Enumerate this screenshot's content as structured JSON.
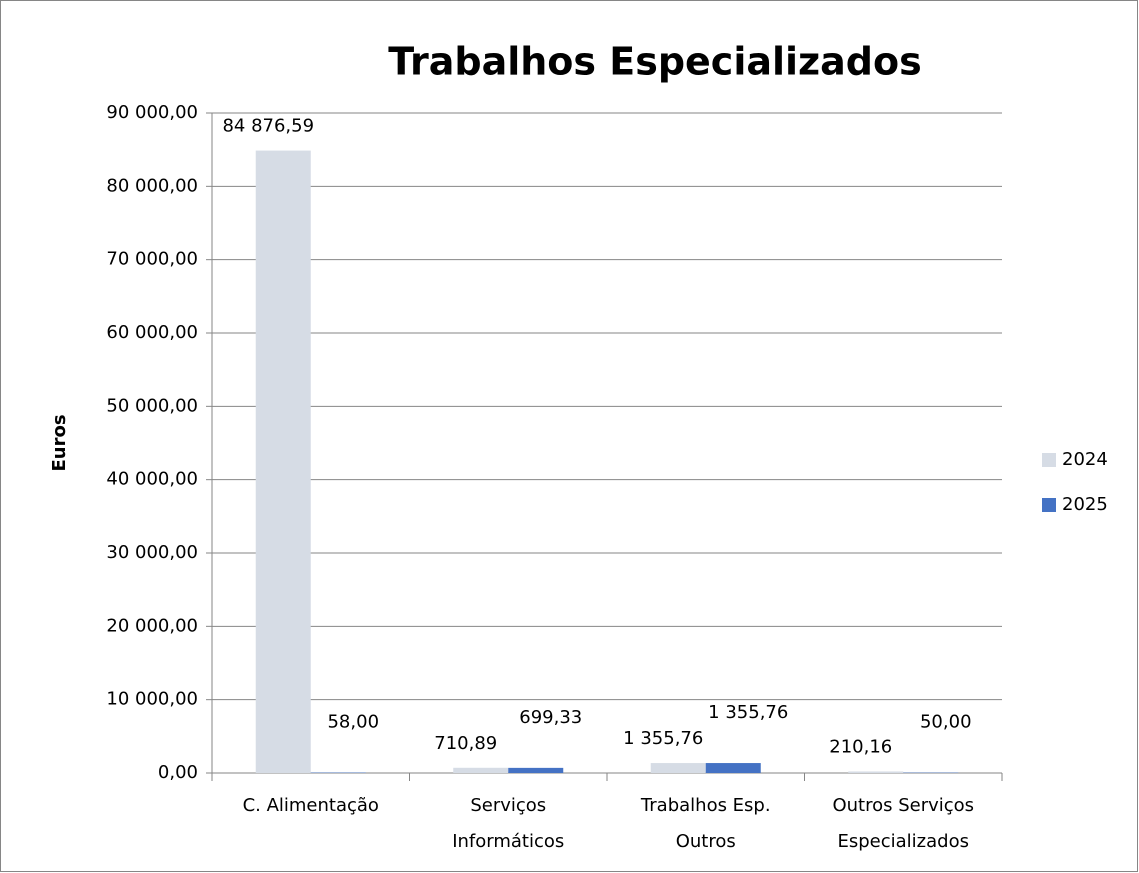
{
  "chart_data": {
    "type": "bar",
    "title": "Trabalhos Especializados",
    "y_label": "Euros",
    "categories": [
      "C. Alimentação",
      "Serviços Informáticos",
      "Trabalhos Esp. Outros",
      "Outros Serviços Especializados"
    ],
    "series": [
      {
        "name": "2024",
        "color": "#d6dce5",
        "values": [
          84876.59,
          710.89,
          1355.76,
          210.16
        ],
        "value_labels": [
          "84 876,59",
          "710,89",
          "1 355,76",
          "210,16"
        ]
      },
      {
        "name": "2025",
        "color": "#4472c4",
        "values": [
          58.0,
          699.33,
          1355.76,
          50.0
        ],
        "value_labels": [
          "58,00",
          "699,33",
          "1 355,76",
          "50,00"
        ]
      }
    ],
    "ylim": [
      0,
      90000
    ],
    "yticks": [
      {
        "value": 0,
        "label": "0,00"
      },
      {
        "value": 10000,
        "label": "10 000,00"
      },
      {
        "value": 20000,
        "label": "20 000,00"
      },
      {
        "value": 30000,
        "label": "30 000,00"
      },
      {
        "value": 40000,
        "label": "40 000,00"
      },
      {
        "value": 50000,
        "label": "50 000,00"
      },
      {
        "value": 60000,
        "label": "60 000,00"
      },
      {
        "value": 70000,
        "label": "70 000,00"
      },
      {
        "value": 80000,
        "label": "80 000,00"
      },
      {
        "value": 90000,
        "label": "90 000,00"
      }
    ],
    "grid": true,
    "legend": "right"
  }
}
